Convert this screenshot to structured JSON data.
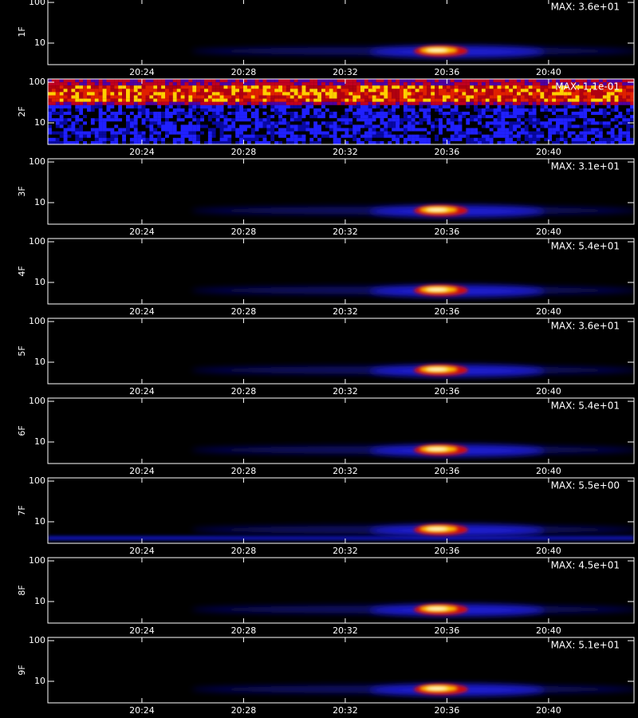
{
  "chart_data": [
    {
      "type": "spectrogram",
      "title": "1F",
      "annotation": "MAX: 3.6e+01",
      "xlim": [
        20.3,
        43.36
      ],
      "xticks": [
        {
          "value": 24,
          "label": "20:24"
        },
        {
          "value": 28,
          "label": "20:28"
        },
        {
          "value": 32,
          "label": "20:32"
        },
        {
          "value": 36,
          "label": "20:36"
        },
        {
          "value": 40,
          "label": "20:40"
        }
      ],
      "ylim": [
        2.95,
        120
      ],
      "yticks": [
        10,
        100
      ],
      "log_y": true
    },
    {
      "type": "spectrogram",
      "title": "2F",
      "annotation": "MAX: 1.1e-01",
      "xlim": [
        20.3,
        43.36
      ],
      "xticks": [
        {
          "value": 24,
          "label": "20:24"
        },
        {
          "value": 28,
          "label": "20:28"
        },
        {
          "value": 32,
          "label": "20:32"
        },
        {
          "value": 36,
          "label": "20:36"
        },
        {
          "value": 40,
          "label": "20:40"
        }
      ],
      "ylim": [
        2.95,
        120
      ],
      "yticks": [
        10,
        100
      ],
      "log_y": true
    },
    {
      "type": "spectrogram",
      "title": "3F",
      "annotation": "MAX: 3.1e+01",
      "xlim": [
        20.3,
        43.36
      ],
      "xticks": [
        {
          "value": 24,
          "label": "20:24"
        },
        {
          "value": 28,
          "label": "20:28"
        },
        {
          "value": 32,
          "label": "20:32"
        },
        {
          "value": 36,
          "label": "20:36"
        },
        {
          "value": 40,
          "label": "20:40"
        }
      ],
      "ylim": [
        2.95,
        120
      ],
      "yticks": [
        10,
        100
      ],
      "log_y": true
    },
    {
      "type": "spectrogram",
      "title": "4F",
      "annotation": "MAX: 5.4e+01",
      "xlim": [
        20.3,
        43.36
      ],
      "xticks": [
        {
          "value": 24,
          "label": "20:24"
        },
        {
          "value": 28,
          "label": "20:28"
        },
        {
          "value": 32,
          "label": "20:32"
        },
        {
          "value": 36,
          "label": "20:36"
        },
        {
          "value": 40,
          "label": "20:40"
        }
      ],
      "ylim": [
        2.95,
        120
      ],
      "yticks": [
        10,
        100
      ],
      "log_y": true
    },
    {
      "type": "spectrogram",
      "title": "5F",
      "annotation": "MAX: 3.6e+01",
      "xlim": [
        20.3,
        43.36
      ],
      "xticks": [
        {
          "value": 24,
          "label": "20:24"
        },
        {
          "value": 28,
          "label": "20:28"
        },
        {
          "value": 32,
          "label": "20:32"
        },
        {
          "value": 36,
          "label": "20:36"
        },
        {
          "value": 40,
          "label": "20:40"
        }
      ],
      "ylim": [
        2.95,
        120
      ],
      "yticks": [
        10,
        100
      ],
      "log_y": true
    },
    {
      "type": "spectrogram",
      "title": "6F",
      "annotation": "MAX: 5.4e+01",
      "xlim": [
        20.3,
        43.36
      ],
      "xticks": [
        {
          "value": 24,
          "label": "20:24"
        },
        {
          "value": 28,
          "label": "20:28"
        },
        {
          "value": 32,
          "label": "20:32"
        },
        {
          "value": 36,
          "label": "20:36"
        },
        {
          "value": 40,
          "label": "20:40"
        }
      ],
      "ylim": [
        2.95,
        120
      ],
      "yticks": [
        10,
        100
      ],
      "log_y": true
    },
    {
      "type": "spectrogram",
      "title": "7F",
      "annotation": "MAX: 5.5e+00",
      "xlim": [
        20.3,
        43.36
      ],
      "xticks": [
        {
          "value": 24,
          "label": "20:24"
        },
        {
          "value": 28,
          "label": "20:28"
        },
        {
          "value": 32,
          "label": "20:32"
        },
        {
          "value": 36,
          "label": "20:36"
        },
        {
          "value": 40,
          "label": "20:40"
        }
      ],
      "ylim": [
        2.95,
        120
      ],
      "yticks": [
        10,
        100
      ],
      "log_y": true
    },
    {
      "type": "spectrogram",
      "title": "8F",
      "annotation": "MAX: 4.5e+01",
      "xlim": [
        20.3,
        43.36
      ],
      "xticks": [
        {
          "value": 24,
          "label": "20:24"
        },
        {
          "value": 28,
          "label": "20:28"
        },
        {
          "value": 32,
          "label": "20:32"
        },
        {
          "value": 36,
          "label": "20:36"
        },
        {
          "value": 40,
          "label": "20:40"
        }
      ],
      "ylim": [
        2.95,
        120
      ],
      "yticks": [
        10,
        100
      ],
      "log_y": true
    },
    {
      "type": "spectrogram",
      "title": "9F",
      "annotation": "MAX: 5.1e+01",
      "xlim": [
        20.3,
        43.36
      ],
      "xticks": [
        {
          "value": 24,
          "label": "20:24"
        },
        {
          "value": 28,
          "label": "20:28"
        },
        {
          "value": 32,
          "label": "20:32"
        },
        {
          "value": 36,
          "label": "20:36"
        },
        {
          "value": 40,
          "label": "20:40"
        }
      ],
      "ylim": [
        2.95,
        120
      ],
      "yticks": [
        10,
        100
      ],
      "log_y": true
    }
  ]
}
